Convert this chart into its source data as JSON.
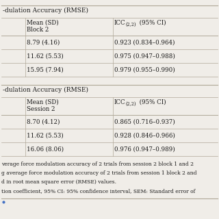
{
  "background_color": "#f0ede8",
  "table1_header": "-dulation Accuracy (RMSE)",
  "table1_col1_header_line1": "Mean (SD)",
  "table1_col1_header_line2": "Block 2",
  "table1_col2_header": "ICC",
  "table1_col2_header_sub": "(2,2)",
  "table1_col2_header_rest": " (95% CI)",
  "table1_rows": [
    [
      "8.79 (4.16)",
      "0.923 (0.834–0.964)"
    ],
    [
      "11.62 (5.53)",
      "0.975 (0.947–0.988)"
    ],
    [
      "15.95 (7.94)",
      "0.979 (0.955–0.990)"
    ]
  ],
  "table2_header": "-dulation Accuracy (RMSE)",
  "table2_col1_header_line1": "Mean (SD)",
  "table2_col1_header_line2": "Session 2",
  "table2_col2_header": "ICC",
  "table2_col2_header_sub": "(2,2)",
  "table2_col2_header_rest": " (95% CI)",
  "table2_rows": [
    [
      "8.70 (4.12)",
      "0.865 (0.716–0.937)"
    ],
    [
      "11.62 (5.53)",
      "0.928 (0.846–0.966)"
    ],
    [
      "16.06 (8.06)",
      "0.976 (0.947–0.989)"
    ]
  ],
  "footer_lines": [
    "verage force modulation accuracy of 2 trials from session 2 block 1 and 2",
    "g average force modulation accuracy of 2 trials from session 1 block 2 and",
    "d in root mean square error (RMSE) values.",
    "tion coefficient, 95% CI: 95% confidence interval, SEM: Standard error of"
  ],
  "line_color": "#b0a898",
  "text_color": "#1a1a1a",
  "fs_section": 6.5,
  "fs_body": 6.2,
  "fs_footer": 5.5
}
